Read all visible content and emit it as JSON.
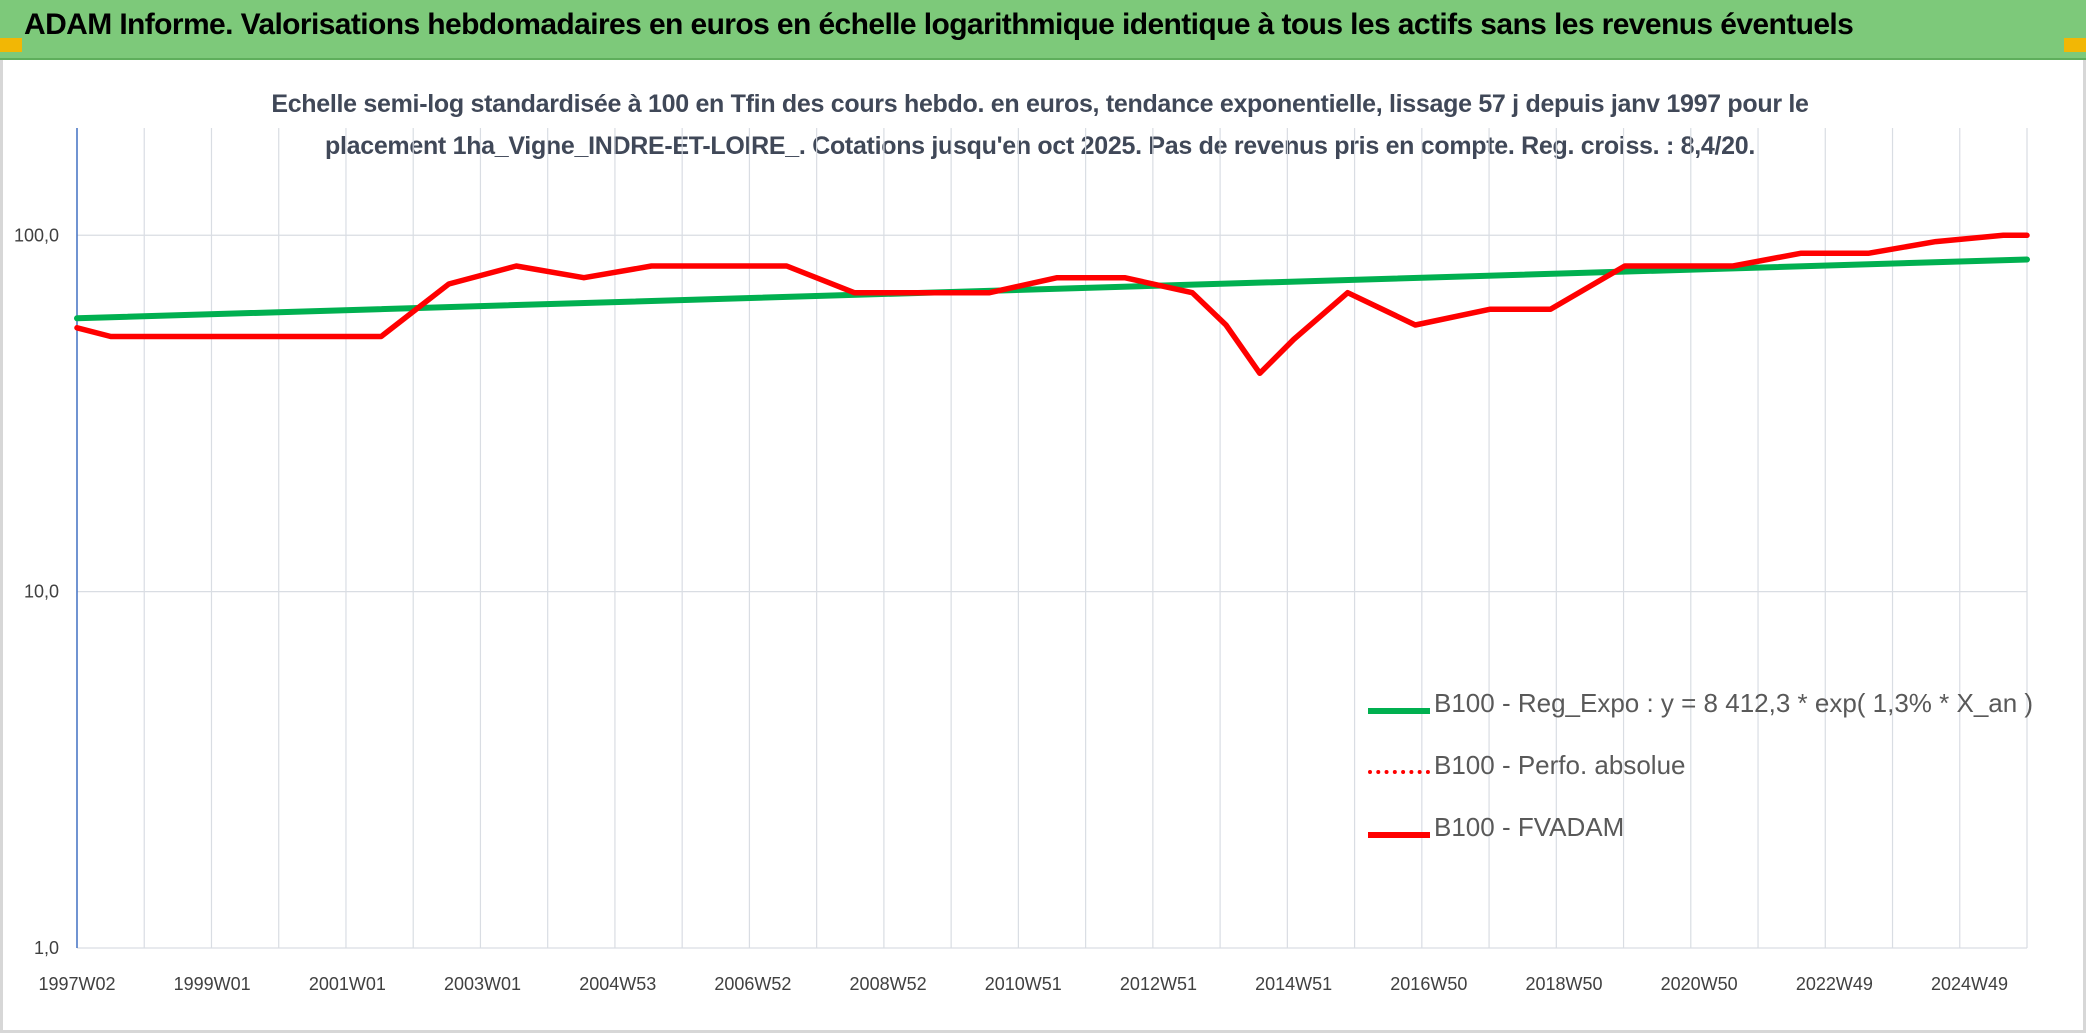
{
  "header": {
    "title": "ADAM Informe. Valorisations hebdomadaires en euros en échelle logarithmique identique à tous les actifs sans les revenus éventuels"
  },
  "chart_data": {
    "type": "line",
    "title_line1": "Echelle semi-log standardisée à 100 en Tfin des cours hebdo. en euros, tendance exponentielle, lissage 57 j depuis janv 1997 pour le",
    "title_line2": "placement 1ha_Vigne_INDRE-ET-LOIRE_. Cotations jusqu'en oct 2025. Pas de revenus pris en compte. Reg. croiss. : 8,4/20.",
    "y_scale": "log",
    "ylim": [
      1,
      200
    ],
    "y_ticks": [
      {
        "value": 1,
        "label": "1,0"
      },
      {
        "value": 10,
        "label": "10,0"
      },
      {
        "value": 100,
        "label": "100,0"
      }
    ],
    "x_range": [
      1997.0,
      2025.85
    ],
    "x_ticks": [
      {
        "x": 1997.0,
        "label": "1997W02"
      },
      {
        "x": 1999.0,
        "label": "1999W01"
      },
      {
        "x": 2001.0,
        "label": "2001W01"
      },
      {
        "x": 2003.0,
        "label": "2003W01"
      },
      {
        "x": 2005.0,
        "label": "2004W53"
      },
      {
        "x": 2007.0,
        "label": "2006W52"
      },
      {
        "x": 2009.0,
        "label": "2008W52"
      },
      {
        "x": 2011.0,
        "label": "2010W51"
      },
      {
        "x": 2013.0,
        "label": "2012W51"
      },
      {
        "x": 2015.0,
        "label": "2014W51"
      },
      {
        "x": 2017.0,
        "label": "2016W50"
      },
      {
        "x": 2019.0,
        "label": "2018W50"
      },
      {
        "x": 2021.0,
        "label": "2020W50"
      },
      {
        "x": 2023.0,
        "label": "2022W49"
      },
      {
        "x": 2025.0,
        "label": "2024W49"
      }
    ],
    "grid": "vertical",
    "legend_position": "bottom-right",
    "series": [
      {
        "name": "B100 - Reg_Expo : y = 8 412,3 * exp( 1,3% *  X_an )",
        "color": "#00b050",
        "style": "solid",
        "points": [
          [
            1997.0,
            58.5
          ],
          [
            2025.85,
            85.5
          ]
        ]
      },
      {
        "name": "B100 - Perfo. absolue",
        "color": "#ff0000",
        "style": "dotted",
        "points": []
      },
      {
        "name": "B100 - FVADAM",
        "color": "#ff0000",
        "style": "solid",
        "points": [
          [
            1997.0,
            55
          ],
          [
            1997.5,
            52
          ],
          [
            2001.5,
            52
          ],
          [
            2002.5,
            73
          ],
          [
            2003.5,
            82
          ],
          [
            2004.5,
            76
          ],
          [
            2005.5,
            82
          ],
          [
            2007.5,
            82
          ],
          [
            2008.5,
            69
          ],
          [
            2010.5,
            69
          ],
          [
            2011.5,
            76
          ],
          [
            2012.5,
            76
          ],
          [
            2013.5,
            69
          ],
          [
            2014.0,
            56
          ],
          [
            2014.5,
            41
          ],
          [
            2015.0,
            51
          ],
          [
            2015.8,
            69
          ],
          [
            2016.8,
            56
          ],
          [
            2017.9,
            62
          ],
          [
            2018.8,
            62
          ],
          [
            2019.9,
            82
          ],
          [
            2021.5,
            82
          ],
          [
            2022.5,
            89
          ],
          [
            2023.5,
            89
          ],
          [
            2024.5,
            96
          ],
          [
            2025.5,
            100
          ],
          [
            2025.85,
            100
          ]
        ]
      }
    ]
  },
  "colors": {
    "banner": "#7dc97a",
    "corner": "#f2b705",
    "grid": "#d9dde3",
    "y_axis": "#4472c4"
  }
}
